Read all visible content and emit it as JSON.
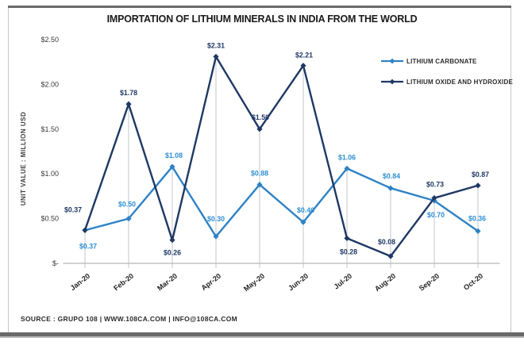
{
  "title": "IMPORTATION OF LITHIUM MINERALS IN INDIA FROM THE WORLD",
  "source_line": "SOURCE : GRUPO 108 | WWW.108CA.COM | INFO@108CA.COM",
  "y_axis_title": "UNIT VALUE : MILLION USD",
  "colors": {
    "carbonate_blue": "#2E82C5",
    "oxide_navy": "#1F3864",
    "drop_line_gray": "#C3C7CD",
    "axis_gray": "#B8B8B8",
    "frame_gray": "#6A6A6A"
  },
  "chart_data": {
    "type": "line",
    "title": "IMPORTATION OF LITHIUM MINERALS IN INDIA FROM THE WORLD",
    "xlabel": "",
    "ylabel": "UNIT VALUE : MILLION USD",
    "ylim": [
      0,
      2.5
    ],
    "ytick_step": 0.5,
    "ytick_labels": [
      "$-",
      "$0.50",
      "$1.00",
      "$1.50",
      "$2.00",
      "$2.50"
    ],
    "categories": [
      "Jan-20",
      "Feb-20",
      "Mar-20",
      "Apr-20",
      "May-20",
      "Jun-20",
      "Jul-20",
      "Aug-20",
      "Sep-20",
      "Oct-20"
    ],
    "grid": "vertical-drop-lines",
    "legend_position": "top-right",
    "series": [
      {
        "name": "LITHIUM CARBONATE",
        "color": "#2E82C5",
        "label_color": "#2E8FD4",
        "values": [
          0.37,
          0.5,
          1.08,
          0.3,
          0.88,
          0.46,
          1.06,
          0.84,
          0.7,
          0.36
        ],
        "point_labels": [
          "$0.37",
          "$0.50",
          "$1.08",
          "$0.30",
          "$0.88",
          "$0.46",
          "$1.06",
          "$0.84",
          "$0.70",
          "$0.36"
        ],
        "label_offsets": [
          [
            4,
            20
          ],
          [
            -2,
            -18
          ],
          [
            2,
            -14
          ],
          [
            0,
            -22
          ],
          [
            0,
            -14
          ],
          [
            3,
            -15
          ],
          [
            0,
            -14
          ],
          [
            1,
            -15
          ],
          [
            2,
            18
          ],
          [
            -1,
            -16
          ]
        ]
      },
      {
        "name": "LITHIUM OXIDE AND HYDROXIDE",
        "color": "#1F3864",
        "label_color": "#1F3864",
        "values": [
          0.37,
          1.78,
          0.26,
          2.31,
          1.5,
          2.21,
          0.28,
          0.08,
          0.73,
          0.87
        ],
        "point_labels": [
          "$0.37",
          "$1.78",
          "$0.26",
          "$2.31",
          "$1.50",
          "$2.21",
          "$0.28",
          "$0.08",
          "$0.73",
          "$0.87"
        ],
        "label_offsets": [
          [
            -15,
            -26
          ],
          [
            0,
            -14
          ],
          [
            0,
            16
          ],
          [
            0,
            -14
          ],
          [
            1,
            -15
          ],
          [
            1,
            -13
          ],
          [
            2,
            17
          ],
          [
            -5,
            -18
          ],
          [
            1,
            -17
          ],
          [
            3,
            -14
          ]
        ]
      }
    ]
  }
}
